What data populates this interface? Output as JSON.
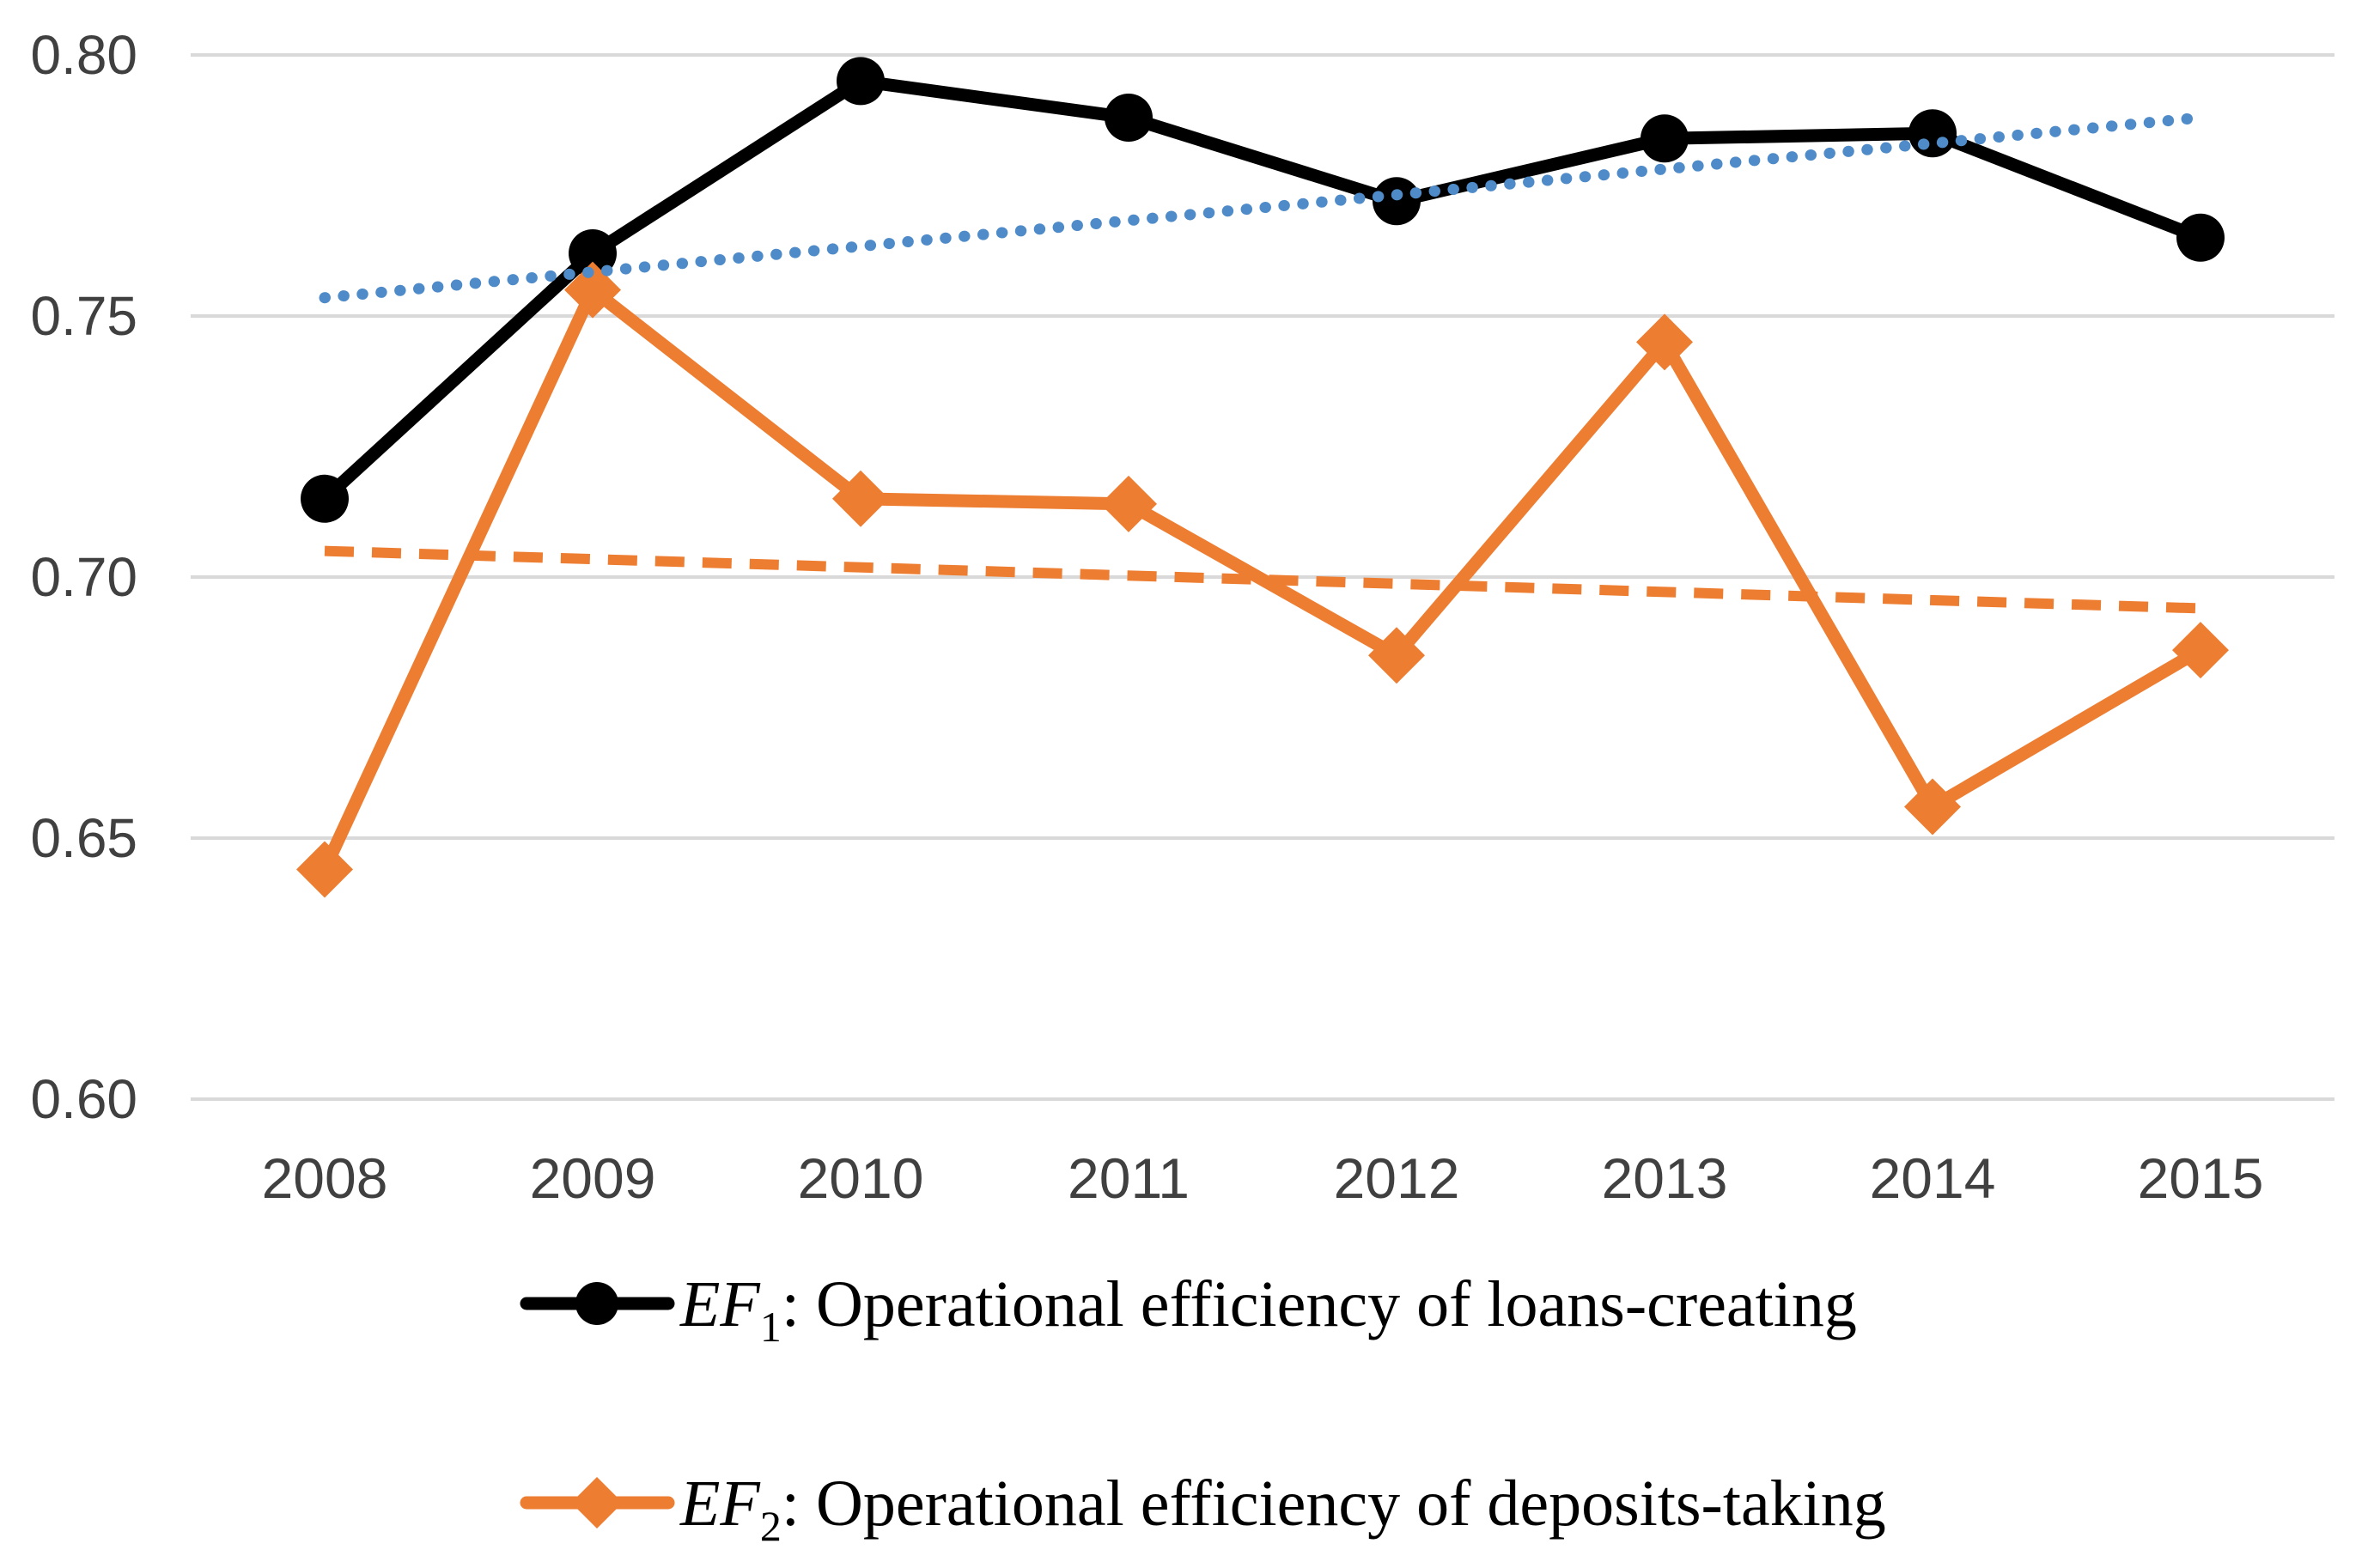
{
  "chart_data": {
    "type": "line",
    "title": "",
    "xlabel": "",
    "ylabel": "",
    "categories": [
      "2008",
      "2009",
      "2010",
      "2011",
      "2012",
      "2013",
      "2014",
      "2015"
    ],
    "series": [
      {
        "name": "EF1",
        "legend_prefix": "EF",
        "legend_subscript": "1",
        "legend_rest": ": Operational efficiency of loans-creating",
        "color": "#000000",
        "marker": "circle",
        "line_style": "solid",
        "values": [
          0.715,
          0.762,
          0.795,
          0.788,
          0.772,
          0.784,
          0.785,
          0.765
        ]
      },
      {
        "name": "EF2",
        "legend_prefix": "EF",
        "legend_subscript": "2",
        "legend_rest": ": Operational efficiency of deposits-taking",
        "color": "#ED7D31",
        "marker": "diamond",
        "line_style": "solid",
        "values": [
          0.644,
          0.755,
          0.715,
          0.714,
          0.685,
          0.745,
          0.656,
          0.686
        ]
      }
    ],
    "trendlines": [
      {
        "for": "EF1",
        "style": "dotted",
        "color": "#4E8BC8",
        "start_value": 0.7535,
        "end_value": 0.788
      },
      {
        "for": "EF2",
        "style": "dashed",
        "color": "#ED7D31",
        "start_value": 0.705,
        "end_value": 0.694
      }
    ],
    "y_axis": {
      "tick_labels": [
        "0.80",
        "0.75",
        "0.70",
        "0.65",
        "0.60"
      ],
      "tick_values": [
        0.8,
        0.75,
        0.7,
        0.65,
        0.6
      ],
      "min": 0.6,
      "max": 0.8
    },
    "ylim": [
      0.6,
      0.8
    ],
    "grid": true,
    "legend_position": "bottom",
    "colors": {
      "grid": "#D9D9D9",
      "axis_text": "#404040",
      "background": "#FFFFFF",
      "ef1": "#000000",
      "ef2": "#ED7D31",
      "trend_ef1": "#4E8BC8",
      "trend_ef2": "#ED7D31"
    }
  }
}
